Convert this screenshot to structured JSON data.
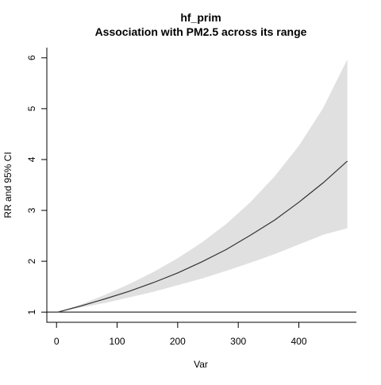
{
  "chart_data": {
    "type": "line",
    "title": "hf_prim",
    "subtitle": "Association with PM2.5 across its range",
    "xlabel": "Var",
    "ylabel": "RR and 95% CI",
    "xlim": [
      -16,
      495
    ],
    "ylim": [
      0.8,
      6.2
    ],
    "x_ticks": [
      0,
      100,
      200,
      300,
      400
    ],
    "y_ticks": [
      1,
      2,
      3,
      4,
      5,
      6
    ],
    "x_tick_labels": [
      "0",
      "100",
      "200",
      "300",
      "400"
    ],
    "y_tick_labels": [
      "1",
      "2",
      "3",
      "4",
      "5",
      "6"
    ],
    "reference_line": 1,
    "grid": false,
    "legend": "none",
    "series": [
      {
        "x": [
          2,
          40,
          80,
          120,
          160,
          200,
          240,
          280,
          320,
          360,
          400,
          440,
          480
        ],
        "y": [
          1.0,
          1.12,
          1.26,
          1.41,
          1.58,
          1.77,
          1.99,
          2.23,
          2.51,
          2.81,
          3.16,
          3.54,
          3.97
        ],
        "lower": [
          1.0,
          1.09,
          1.18,
          1.29,
          1.4,
          1.53,
          1.66,
          1.81,
          1.97,
          2.14,
          2.33,
          2.52,
          2.65
        ],
        "upper": [
          1.0,
          1.15,
          1.34,
          1.55,
          1.79,
          2.06,
          2.37,
          2.73,
          3.16,
          3.67,
          4.27,
          5.01,
          5.97
        ]
      }
    ],
    "colors": {
      "line": "#333333",
      "band": "#e0e0e0",
      "axis": "#000000",
      "reference": "#000000"
    }
  }
}
